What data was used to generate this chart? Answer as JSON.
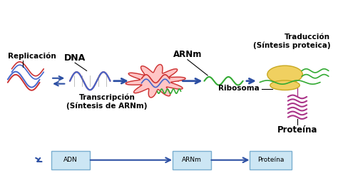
{
  "bg_color": "#ffffff",
  "arrow_color": "#2c4fa3",
  "labels": {
    "replicacion": "Replicación",
    "dna": "DNA",
    "arnm": "ARNm",
    "traduccion": "Traducción\n(Síntesis proteica)",
    "transcripcion": "Transcripción\n(Síntesis de ARNm)",
    "ribosoma": "Ribosoma",
    "proteina": "Proteína"
  },
  "box_color": "#cce6f4",
  "box_edge": "#7aaed0"
}
